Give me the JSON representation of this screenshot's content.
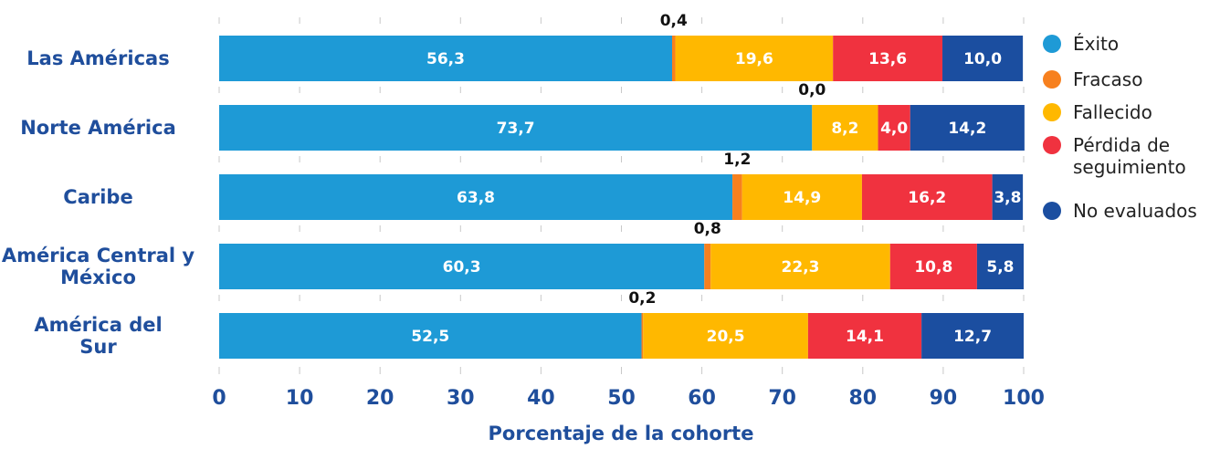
{
  "chart_data": {
    "type": "stacked_bar_horizontal",
    "categories": [
      "Las Américas",
      "Norte América",
      "Caribe",
      "América Central y\nMéxico",
      "América del\nSur"
    ],
    "series": [
      {
        "name": "Éxito",
        "color": "#1e9ad6",
        "values": [
          56.3,
          73.7,
          63.8,
          60.3,
          52.5
        ],
        "value_labels": [
          "56,3",
          "73,7",
          "63,8",
          "60,3",
          "52,5"
        ]
      },
      {
        "name": "Fracaso",
        "color": "#f7801e",
        "values": [
          0.4,
          0.0,
          1.2,
          0.8,
          0.2
        ],
        "value_labels": [
          "0,4",
          "0,0",
          "1,2",
          "0,8",
          "0,2"
        ]
      },
      {
        "name": "Fallecido",
        "color": "#ffb800",
        "values": [
          19.6,
          8.2,
          14.9,
          22.3,
          20.5
        ],
        "value_labels": [
          "19,6",
          "8,2",
          "14,9",
          "22,3",
          "20,5"
        ]
      },
      {
        "name": "Pérdida de\nseguimiento",
        "color": "#f0323f",
        "values": [
          13.6,
          4.0,
          16.2,
          10.8,
          14.1
        ],
        "value_labels": [
          "13,6",
          "4,0",
          "16,2",
          "10,8",
          "14,1"
        ]
      },
      {
        "name": "No evaluados",
        "color": "#1b4ea0",
        "values": [
          10.0,
          14.2,
          3.8,
          5.8,
          12.7
        ],
        "value_labels": [
          "10,0",
          "14,2",
          "3,8",
          "5,8",
          "12,7"
        ]
      }
    ],
    "xlabel": "Porcentaje de la cohorte",
    "xlim": [
      0,
      100
    ],
    "xticks": [
      0,
      10,
      20,
      30,
      40,
      50,
      60,
      70,
      80,
      90,
      100
    ],
    "legend": "right"
  }
}
